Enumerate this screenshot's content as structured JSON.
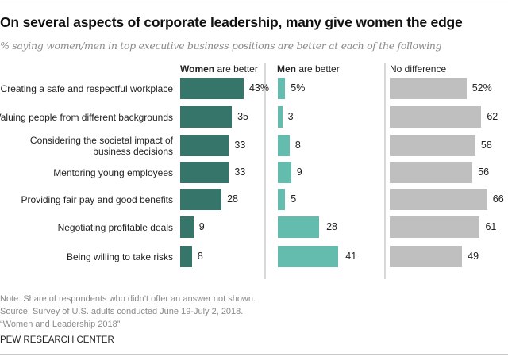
{
  "chart_data": {
    "type": "bar",
    "orientation": "horizontal",
    "title": "On several aspects of corporate leadership, many give women the edge",
    "subtitle": "% saying women/men in top executive business positions are better at each of the following",
    "categories": [
      "Creating a safe and respectful workplace",
      "Valuing people from different backgrounds",
      "Considering the societal impact of business decisions",
      "Mentoring young employees",
      "Providing fair pay and good benefits",
      "Negotiating profitable deals",
      "Being willing to take risks"
    ],
    "category_lines": [
      [
        "Creating a safe and respectful workplace"
      ],
      [
        "Valuing people from different backgrounds"
      ],
      [
        "Considering the societal impact of",
        "business decisions"
      ],
      [
        "Mentoring young employees"
      ],
      [
        "Providing fair pay and good benefits"
      ],
      [
        "Negotiating profitable deals"
      ],
      [
        "Being willing to take risks"
      ]
    ],
    "series": [
      {
        "name_bold": "Women",
        "name_rest": " are better",
        "color": "#36766a",
        "values": [
          43,
          35,
          33,
          33,
          28,
          9,
          8
        ]
      },
      {
        "name_bold": "Men",
        "name_rest": " are better",
        "color": "#63bcae",
        "values": [
          5,
          3,
          8,
          9,
          5,
          28,
          41
        ]
      },
      {
        "name_bold": "",
        "name_rest": "No difference",
        "color": "#bfbfbf",
        "values": [
          52,
          62,
          58,
          56,
          66,
          61,
          49
        ]
      }
    ],
    "first_value_suffix": "%",
    "xlim": [
      0,
      100
    ],
    "grid": false,
    "legend": "column-headers"
  },
  "footer": {
    "note": "Note: Share of respondents who didn’t offer an answer not shown.",
    "source": "Source: Survey of U.S. adults conducted June 19-July 2, 2018.",
    "report": "“Women and Leadership 2018”",
    "org": "PEW RESEARCH CENTER"
  }
}
